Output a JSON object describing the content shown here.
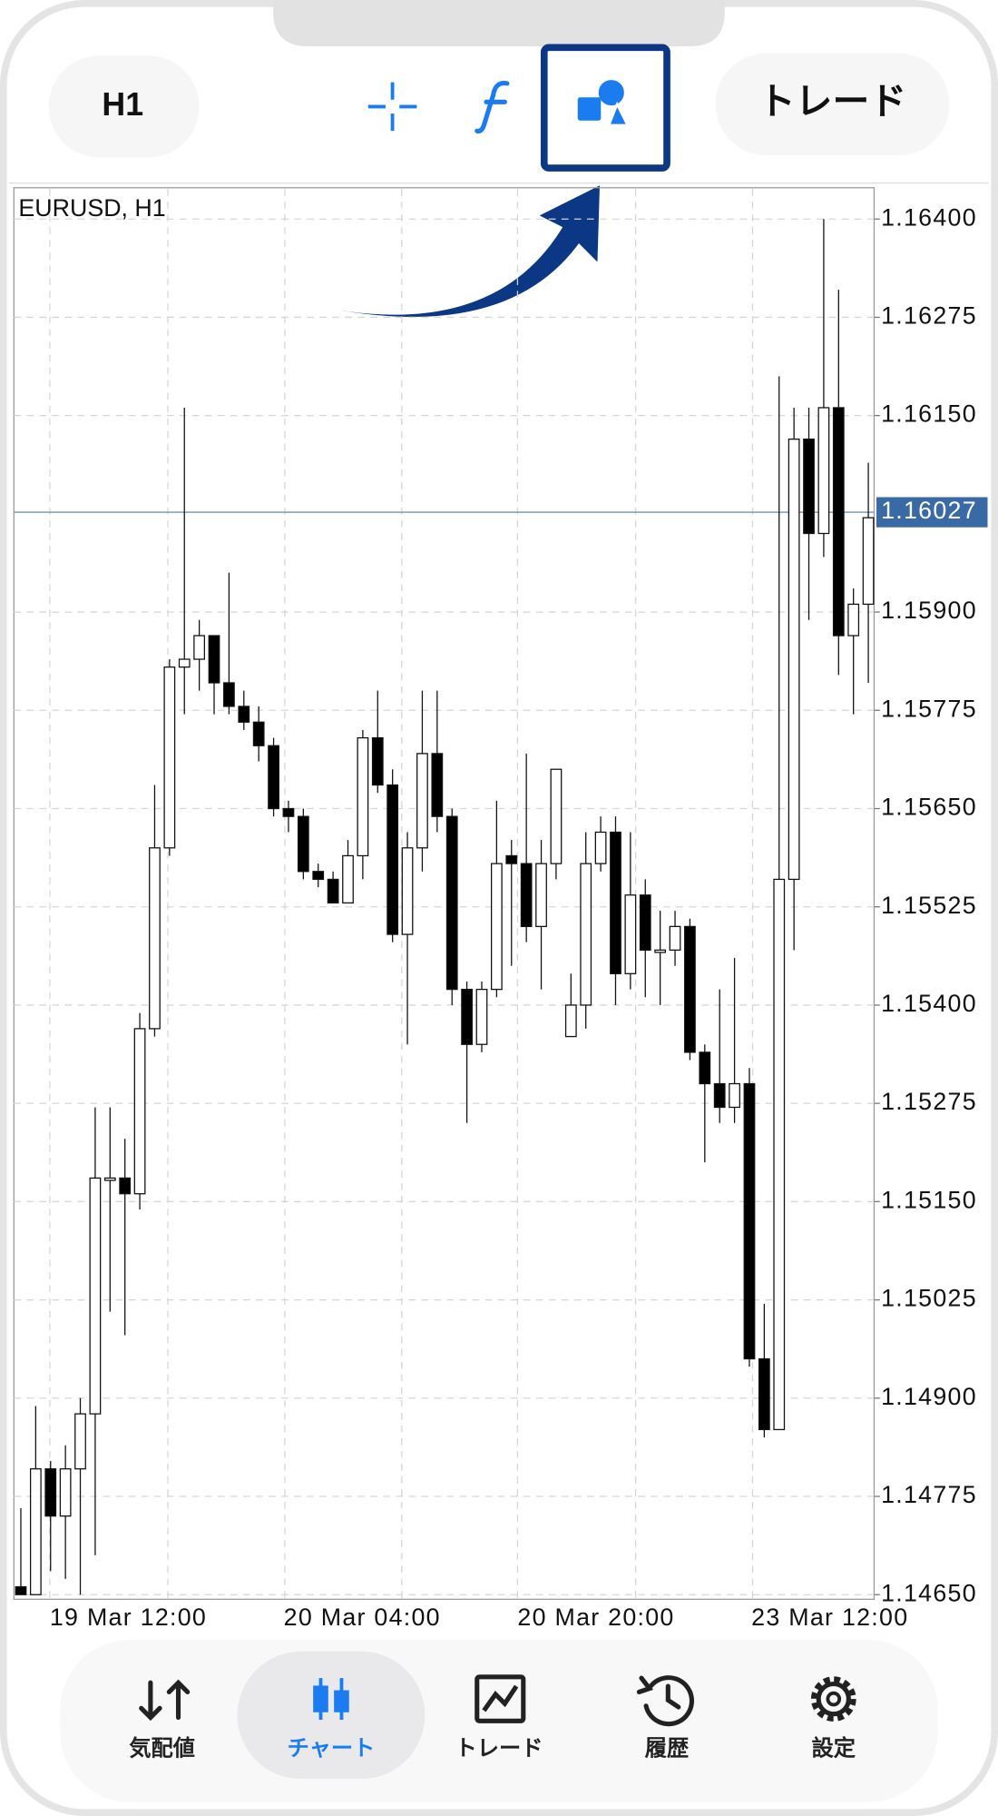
{
  "toolbar": {
    "timeframe": "H1",
    "trade_button": "トレード"
  },
  "chart": {
    "type": "candlestick",
    "symbol": "EURUSD, H1",
    "ylim": [
      1.1465,
      1.164
    ],
    "yticks": [
      {
        "value": 1.164,
        "label": "1.16400"
      },
      1.16275,
      {
        "value": 1.1615,
        "label": "1.16150"
      },
      {
        "value": 1.159,
        "label": "1.15900"
      },
      1.15775,
      {
        "value": 1.1565,
        "label": "1.15650"
      },
      1.15525,
      {
        "value": 1.154,
        "label": "1.15400"
      },
      1.15275,
      {
        "value": 1.1515,
        "label": "1.15150"
      },
      1.15025,
      {
        "value": 1.149,
        "label": "1.14900"
      },
      1.14775,
      {
        "value": 1.1465,
        "label": "1.14650"
      }
    ],
    "current_price": 1.16027,
    "x_labels": [
      "19 Mar 12:00",
      "20 Mar 04:00",
      "20 Mar 20:00",
      "23 Mar 12:00"
    ],
    "candles": {
      "open": [
        1.1466,
        1.1465,
        1.1481,
        1.1475,
        1.1481,
        1.1488,
        1.1518,
        1.1518,
        1.1516,
        1.1537,
        1.156,
        1.1583,
        1.1584,
        1.1587,
        1.1581,
        1.1578,
        1.1576,
        1.1573,
        1.1565,
        1.1564,
        1.1557,
        1.1556,
        1.1553,
        1.1559,
        1.1574,
        1.1568,
        1.1549,
        1.156,
        1.1572,
        1.1564,
        1.1542,
        1.1535,
        1.1542,
        1.1559,
        1.1558,
        1.155,
        1.1558,
        1.1536,
        1.154,
        1.1558,
        1.1562,
        1.1544,
        1.1554,
        1.1547,
        1.1547,
        1.155,
        1.1534,
        1.153,
        1.1527,
        1.153,
        1.1495,
        1.1486,
        1.1556,
        1.1612,
        1.16,
        1.1616,
        1.1587,
        1.1591
      ],
      "high": [
        1.1476,
        1.1489,
        1.1482,
        1.1484,
        1.149,
        1.1527,
        1.1527,
        1.1523,
        1.1539,
        1.1568,
        1.1584,
        1.1616,
        1.1589,
        1.1587,
        1.1595,
        1.158,
        1.1578,
        1.1574,
        1.1566,
        1.1565,
        1.1558,
        1.1557,
        1.1561,
        1.1575,
        1.158,
        1.157,
        1.1562,
        1.158,
        1.158,
        1.1565,
        1.1543,
        1.1543,
        1.1566,
        1.1561,
        1.1572,
        1.1561,
        1.157,
        1.1544,
        1.1562,
        1.1564,
        1.1564,
        1.1562,
        1.1556,
        1.1552,
        1.1552,
        1.1551,
        1.1535,
        1.1542,
        1.1546,
        1.1532,
        1.1502,
        1.162,
        1.1616,
        1.1616,
        1.164,
        1.1631,
        1.1593,
        1.1609
      ],
      "low": [
        1.1465,
        1.1465,
        1.1468,
        1.1467,
        1.1465,
        1.147,
        1.1501,
        1.1498,
        1.1514,
        1.1536,
        1.1559,
        1.1577,
        1.158,
        1.1577,
        1.1577,
        1.1575,
        1.1571,
        1.1564,
        1.1562,
        1.1556,
        1.1555,
        1.1553,
        1.1553,
        1.1556,
        1.1567,
        1.1548,
        1.1535,
        1.1557,
        1.1562,
        1.154,
        1.1525,
        1.1534,
        1.1541,
        1.1545,
        1.1548,
        1.1542,
        1.1556,
        1.1536,
        1.1537,
        1.1557,
        1.154,
        1.1542,
        1.1541,
        1.154,
        1.1545,
        1.1533,
        1.152,
        1.1525,
        1.1525,
        1.1494,
        1.1485,
        1.1486,
        1.1547,
        1.1589,
        1.1597,
        1.1582,
        1.1577,
        1.1581
      ],
      "close": [
        1.1465,
        1.1481,
        1.1475,
        1.1481,
        1.1488,
        1.1518,
        1.1518,
        1.1516,
        1.1537,
        1.156,
        1.1583,
        1.1584,
        1.1587,
        1.1581,
        1.1578,
        1.1576,
        1.1573,
        1.1565,
        1.1564,
        1.1557,
        1.1556,
        1.1553,
        1.1559,
        1.1574,
        1.1568,
        1.1549,
        1.156,
        1.1572,
        1.1564,
        1.1542,
        1.1535,
        1.1542,
        1.1558,
        1.1558,
        1.155,
        1.1558,
        1.157,
        1.154,
        1.1558,
        1.1562,
        1.1544,
        1.1554,
        1.1547,
        1.1547,
        1.155,
        1.1534,
        1.153,
        1.1527,
        1.153,
        1.1495,
        1.1486,
        1.1556,
        1.1612,
        1.16,
        1.1616,
        1.1587,
        1.1591,
        1.1602
      ]
    }
  },
  "nav": {
    "items": [
      "気配値",
      "チャート",
      "トレード",
      "履歴",
      "設定"
    ]
  }
}
